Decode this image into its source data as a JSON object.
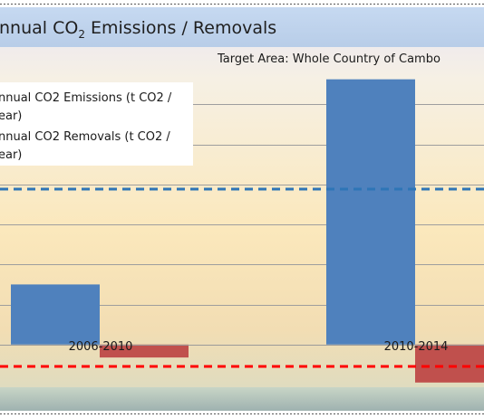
{
  "chart_data": {
    "type": "bar",
    "title": "nnual CO",
    "title_sub": "2",
    "title_rest": " Emissions / Removals",
    "subtitle": "Target Area: Whole Country of  Cambo",
    "categories": [
      "2006-2010",
      "2010-2014"
    ],
    "series": [
      {
        "name": "nnual CO2 Emissions (t CO2 /|ear)",
        "color": "#4f81bd",
        "values": [
          60,
          265
        ]
      },
      {
        "name": "nnual CO2 Removals (t CO2 /|ear)",
        "color": "#c0504d",
        "values": [
          -13,
          -38
        ]
      }
    ],
    "reference_lines": [
      {
        "color": "#2e75b6",
        "value": 155
      },
      {
        "color": "#ff0000",
        "value": -22
      }
    ],
    "ylim": [
      -40,
      290
    ],
    "grid": true,
    "legend_position": "top-left"
  }
}
